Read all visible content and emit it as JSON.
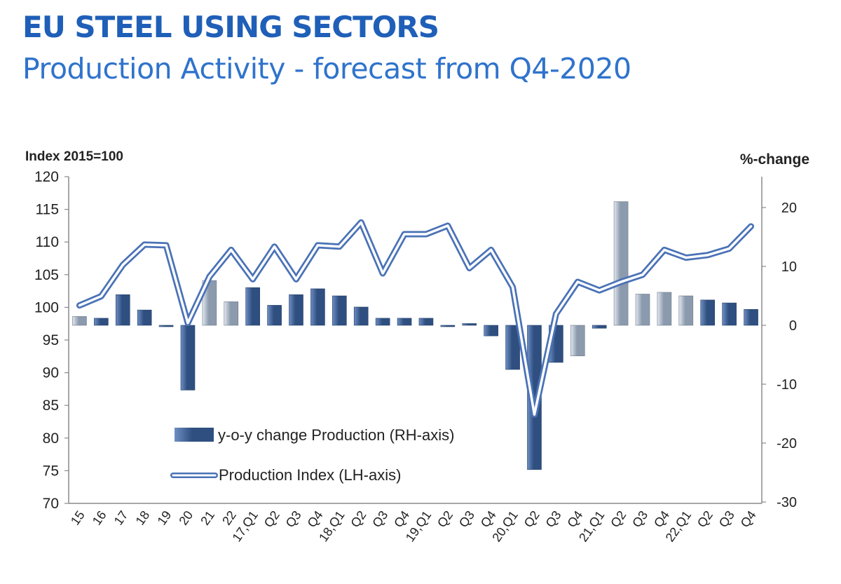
{
  "header": {
    "title": "EU STEEL USING SECTORS",
    "subtitle": "Production Activity - forecast from Q4-2020"
  },
  "colors": {
    "title": "#1f5fb8",
    "subtitle": "#2f73cc",
    "bar_actual": "#2f4f80",
    "bar_actual_light": "#6f8fc4",
    "bar_forecast": "#8c9aad",
    "bar_forecast_light": "#e3e9f1",
    "line_outer": "#4a72b6",
    "line_inner": "#ffffff",
    "axis": "#8a8a8a",
    "text": "#222222"
  },
  "chart_data": {
    "type": "bar",
    "title": "Production Activity - forecast from Q4-2020",
    "left_axis_label": "Index 2015=100",
    "right_axis_label": "%-change",
    "left_ylim": [
      70,
      120
    ],
    "left_ticks": [
      "120",
      "115",
      "110",
      "105",
      "100",
      "95",
      "90",
      "85",
      "80",
      "75",
      "70"
    ],
    "right_ylim": [
      -30,
      25
    ],
    "right_ticks": [
      {
        "value": 20,
        "label": "20"
      },
      {
        "value": 10,
        "label": "10"
      },
      {
        "value": 0,
        "label": "0"
      },
      {
        "value": -10,
        "label": "-10"
      },
      {
        "value": -20,
        "label": "-20"
      },
      {
        "value": -30,
        "label": "-30"
      }
    ],
    "categories": [
      "15",
      "16",
      "17",
      "18",
      "19",
      "20",
      "21",
      "22",
      "17,Q1",
      "Q2",
      "Q3",
      "Q4",
      "18,Q1",
      "Q2",
      "Q3",
      "Q4",
      "19,Q1",
      "Q2",
      "Q3",
      "Q4",
      "20,Q1",
      "Q2",
      "Q3",
      "Q4",
      "21,Q1",
      "Q2",
      "Q3",
      "Q4",
      "22,Q1",
      "Q2",
      "Q3",
      "Q4"
    ],
    "series": [
      {
        "name": "y-o-y change Production (RH-axis)",
        "type": "bar",
        "axis": "right",
        "values": [
          1.5,
          1.2,
          5.2,
          2.6,
          0,
          -11.0,
          7.6,
          4.0,
          6.4,
          3.4,
          5.2,
          6.2,
          5.0,
          3.1,
          1.2,
          1.2,
          1.2,
          -0.2,
          0.3,
          -1.8,
          -7.5,
          -24.5,
          -6.3,
          -5.2,
          -0.5,
          21.0,
          5.3,
          5.6,
          5.0,
          4.3,
          3.8,
          2.7
        ],
        "forecast": [
          true,
          false,
          false,
          false,
          false,
          false,
          true,
          true,
          false,
          false,
          false,
          false,
          false,
          false,
          false,
          false,
          false,
          false,
          false,
          false,
          false,
          false,
          false,
          true,
          false,
          true,
          true,
          true,
          true,
          false,
          false,
          false
        ]
      },
      {
        "name": "Production Index (LH-axis)",
        "type": "line",
        "axis": "left",
        "values": [
          100.3,
          101.7,
          106.5,
          109.6,
          109.5,
          97.6,
          104.7,
          108.8,
          104.3,
          109.3,
          104.3,
          109.5,
          109.3,
          113.0,
          105.2,
          111.2,
          111.2,
          112.5,
          106.0,
          108.8,
          103.1,
          83.6,
          99.0,
          103.9,
          102.6,
          103.9,
          105.0,
          108.8,
          107.6,
          108.0,
          109.0,
          112.4
        ]
      }
    ],
    "legend": {
      "position": "bottom-left",
      "bar_label": "y-o-y change Production (RH-axis)",
      "line_label": "Production Index (LH-axis)"
    }
  }
}
